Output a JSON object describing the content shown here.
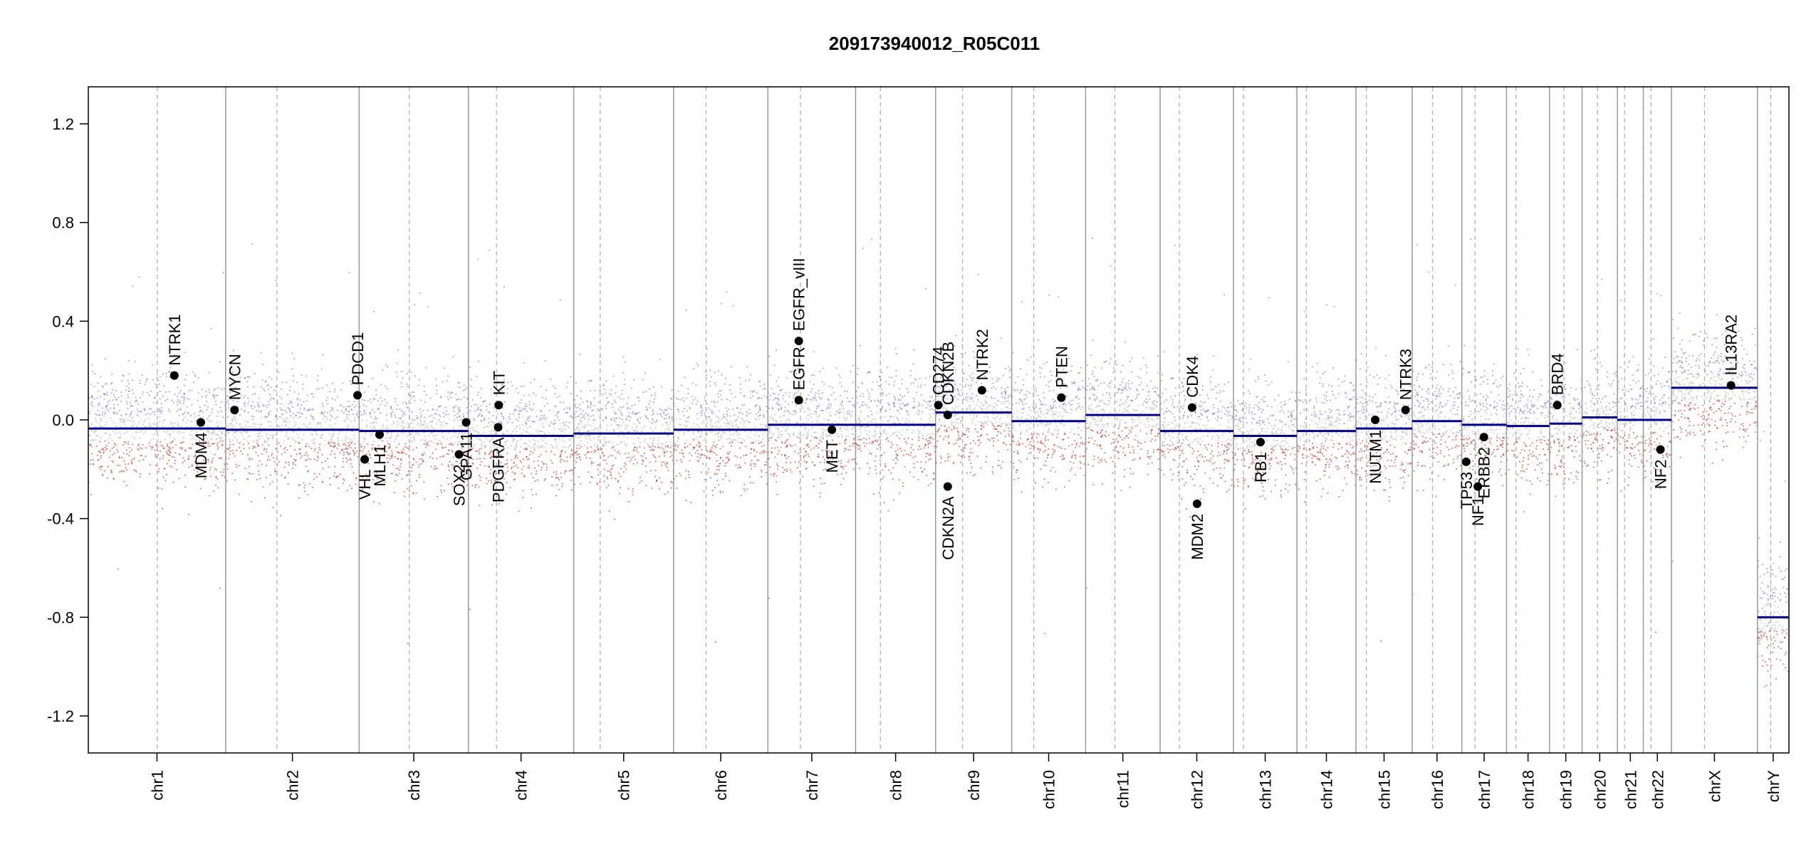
{
  "chart_data": {
    "type": "scatter",
    "title": "209173940012_R05C011",
    "xlabel": "",
    "ylabel": "",
    "ylim": [
      -1.35,
      1.35
    ],
    "y_ticks": [
      "1.2",
      "0.8",
      "0.4",
      "0.0",
      "-0.4",
      "-0.8",
      "-1.2"
    ],
    "grid": false,
    "colors": {
      "segment": "#00008b",
      "gain_points": "#7b7bd0",
      "loss_points": "#c0392b",
      "neutral_points": "#b0b0b0",
      "chr_boundary": "#999999",
      "centromere": "#aaaaaa"
    },
    "chromosomes": [
      {
        "name": "chr1",
        "start": 0,
        "end": 249,
        "centromere": 125,
        "segment": -0.035
      },
      {
        "name": "chr2",
        "start": 249,
        "end": 491,
        "centromere": 342,
        "segment": -0.04
      },
      {
        "name": "chr3",
        "start": 491,
        "end": 689,
        "centromere": 582,
        "segment": -0.045
      },
      {
        "name": "chr4",
        "start": 689,
        "end": 880,
        "centromere": 740,
        "segment": -0.065
      },
      {
        "name": "chr5",
        "start": 880,
        "end": 1061,
        "centromere": 928,
        "segment": -0.055
      },
      {
        "name": "chr6",
        "start": 1061,
        "end": 1232,
        "centromere": 1120,
        "segment": -0.04
      },
      {
        "name": "chr7",
        "start": 1232,
        "end": 1391,
        "centromere": 1291,
        "segment": -0.02
      },
      {
        "name": "chr8",
        "start": 1391,
        "end": 1536,
        "centromere": 1436,
        "segment": -0.02
      },
      {
        "name": "chr9",
        "start": 1536,
        "end": 1674,
        "centromere": 1585,
        "segment": 0.03
      },
      {
        "name": "chr10",
        "start": 1674,
        "end": 1808,
        "centromere": 1714,
        "segment": -0.005
      },
      {
        "name": "chr11",
        "start": 1808,
        "end": 1943,
        "centromere": 1861,
        "segment": 0.02
      },
      {
        "name": "chr12",
        "start": 1943,
        "end": 2076,
        "centromere": 1978,
        "segment": -0.045
      },
      {
        "name": "chr13",
        "start": 2076,
        "end": 2191,
        "centromere": 2094,
        "segment": -0.065
      },
      {
        "name": "chr14",
        "start": 2191,
        "end": 2298,
        "centromere": 2208,
        "segment": -0.045
      },
      {
        "name": "chr15",
        "start": 2298,
        "end": 2400,
        "centromere": 2317,
        "segment": -0.035
      },
      {
        "name": "chr16",
        "start": 2400,
        "end": 2490,
        "centromere": 2437,
        "segment": -0.005
      },
      {
        "name": "chr17",
        "start": 2490,
        "end": 2571,
        "centromere": 2514,
        "segment": -0.02
      },
      {
        "name": "chr18",
        "start": 2571,
        "end": 2649,
        "centromere": 2588,
        "segment": -0.025
      },
      {
        "name": "chr19",
        "start": 2649,
        "end": 2708,
        "centromere": 2675,
        "segment": -0.015
      },
      {
        "name": "chr20",
        "start": 2708,
        "end": 2772,
        "centromere": 2736,
        "segment": 0.01
      },
      {
        "name": "chr21",
        "start": 2772,
        "end": 2819,
        "centromere": 2785,
        "segment": 0.0
      },
      {
        "name": "chr22",
        "start": 2819,
        "end": 2870,
        "centromere": 2833,
        "segment": 0.0
      },
      {
        "name": "chrX",
        "start": 2870,
        "end": 3026,
        "centromere": 2930,
        "segment": 0.13
      },
      {
        "name": "chrY",
        "start": 3026,
        "end": 3083,
        "centromere": 3050,
        "segment": -0.8
      }
    ],
    "genes": [
      {
        "name": "NTRK1",
        "x": 156,
        "y": 0.18,
        "label": "above"
      },
      {
        "name": "MDM4",
        "x": 204,
        "y": -0.01,
        "label": "below"
      },
      {
        "name": "MYCN",
        "x": 265,
        "y": 0.04,
        "label": "above"
      },
      {
        "name": "PDCD1",
        "x": 488,
        "y": 0.1,
        "label": "above"
      },
      {
        "name": "VHL",
        "x": 501,
        "y": -0.16,
        "label": "below"
      },
      {
        "name": "MLH1",
        "x": 528,
        "y": -0.06,
        "label": "below"
      },
      {
        "name": "SOX2",
        "x": 672,
        "y": -0.14,
        "label": "below"
      },
      {
        "name": "GPA11",
        "x": 685,
        "y": -0.01,
        "label": "below"
      },
      {
        "name": "KIT",
        "x": 744,
        "y": 0.06,
        "label": "above"
      },
      {
        "name": "PDGFRA",
        "x": 743,
        "y": -0.03,
        "label": "below"
      },
      {
        "name": "EGFR",
        "x": 1288,
        "y": 0.08,
        "label": "above"
      },
      {
        "name": "EGFR_vIII",
        "x": 1288,
        "y": 0.32,
        "label": "above"
      },
      {
        "name": "MET",
        "x": 1348,
        "y": -0.04,
        "label": "below"
      },
      {
        "name": "CD274",
        "x": 1541,
        "y": 0.06,
        "label": "above"
      },
      {
        "name": "CDKN2B",
        "x": 1558,
        "y": 0.02,
        "label": "above"
      },
      {
        "name": "CDKN2A",
        "x": 1558,
        "y": -0.27,
        "label": "below"
      },
      {
        "name": "NTRK2",
        "x": 1620,
        "y": 0.12,
        "label": "above"
      },
      {
        "name": "PTEN",
        "x": 1764,
        "y": 0.09,
        "label": "above"
      },
      {
        "name": "CDK4",
        "x": 2001,
        "y": 0.05,
        "label": "above"
      },
      {
        "name": "MDM2",
        "x": 2010,
        "y": -0.34,
        "label": "below"
      },
      {
        "name": "RB1",
        "x": 2125,
        "y": -0.09,
        "label": "below"
      },
      {
        "name": "NUTM1",
        "x": 2333,
        "y": 0.0,
        "label": "below"
      },
      {
        "name": "NTRK3",
        "x": 2388,
        "y": 0.04,
        "label": "above"
      },
      {
        "name": "TP53",
        "x": 2498,
        "y": -0.17,
        "label": "below"
      },
      {
        "name": "NF1",
        "x": 2519,
        "y": -0.27,
        "label": "below"
      },
      {
        "name": "ERBB2",
        "x": 2530,
        "y": -0.07,
        "label": "below"
      },
      {
        "name": "BRD4",
        "x": 2663,
        "y": 0.06,
        "label": "above"
      },
      {
        "name": "NF2",
        "x": 2850,
        "y": -0.12,
        "label": "below"
      },
      {
        "name": "IL13RA2",
        "x": 2978,
        "y": 0.14,
        "label": "above"
      }
    ]
  }
}
